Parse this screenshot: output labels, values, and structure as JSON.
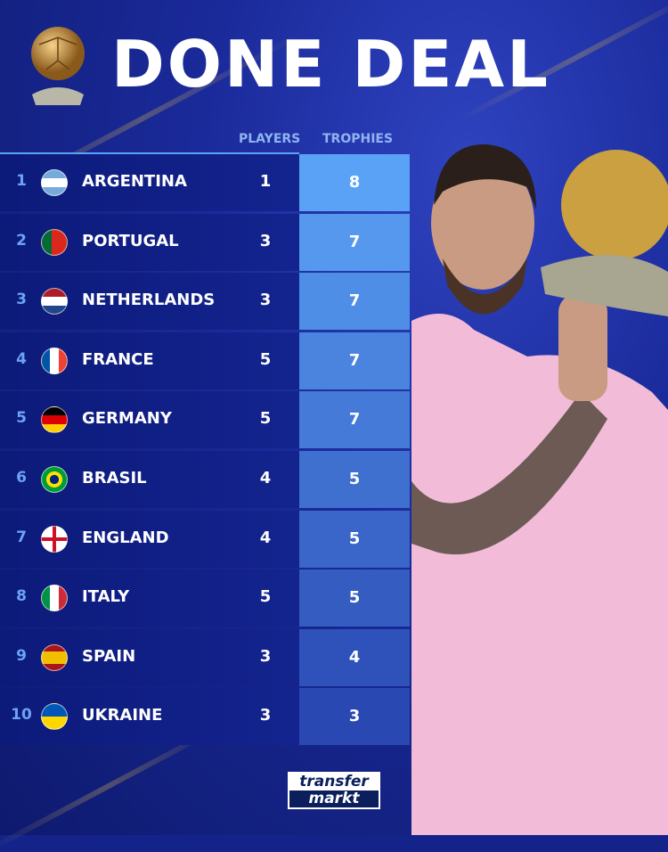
{
  "title": "DONE DEAL",
  "columns": {
    "players": "PLAYERS",
    "trophies": "TROPHIES"
  },
  "rows": [
    {
      "rank": "1",
      "country": "ARGENTINA",
      "flag": "argentina-flag-icon",
      "players": "1",
      "trophies": "8"
    },
    {
      "rank": "2",
      "country": "PORTUGAL",
      "flag": "portugal-flag-icon",
      "players": "3",
      "trophies": "7"
    },
    {
      "rank": "3",
      "country": "NETHERLANDS",
      "flag": "netherlands-flag-icon",
      "players": "3",
      "trophies": "7"
    },
    {
      "rank": "4",
      "country": "FRANCE",
      "flag": "france-flag-icon",
      "players": "5",
      "trophies": "7"
    },
    {
      "rank": "5",
      "country": "GERMANY",
      "flag": "germany-flag-icon",
      "players": "5",
      "trophies": "7"
    },
    {
      "rank": "6",
      "country": "BRASIL",
      "flag": "brazil-flag-icon",
      "players": "4",
      "trophies": "5"
    },
    {
      "rank": "7",
      "country": "ENGLAND",
      "flag": "england-flag-icon",
      "players": "4",
      "trophies": "5"
    },
    {
      "rank": "8",
      "country": "ITALY",
      "flag": "italy-flag-icon",
      "players": "5",
      "trophies": "5"
    },
    {
      "rank": "9",
      "country": "SPAIN",
      "flag": "spain-flag-icon",
      "players": "3",
      "trophies": "4"
    },
    {
      "rank": "10",
      "country": "UKRAINE",
      "flag": "ukraine-flag-icon",
      "players": "3",
      "trophies": "3"
    }
  ],
  "logo": {
    "line1": "transfer",
    "line2": "markt"
  },
  "colors": {
    "trophy_top": "#5aa2f6",
    "trophy_bottom": "#2a48b2",
    "background": "#14238a",
    "rank": "#6ea3f2"
  }
}
